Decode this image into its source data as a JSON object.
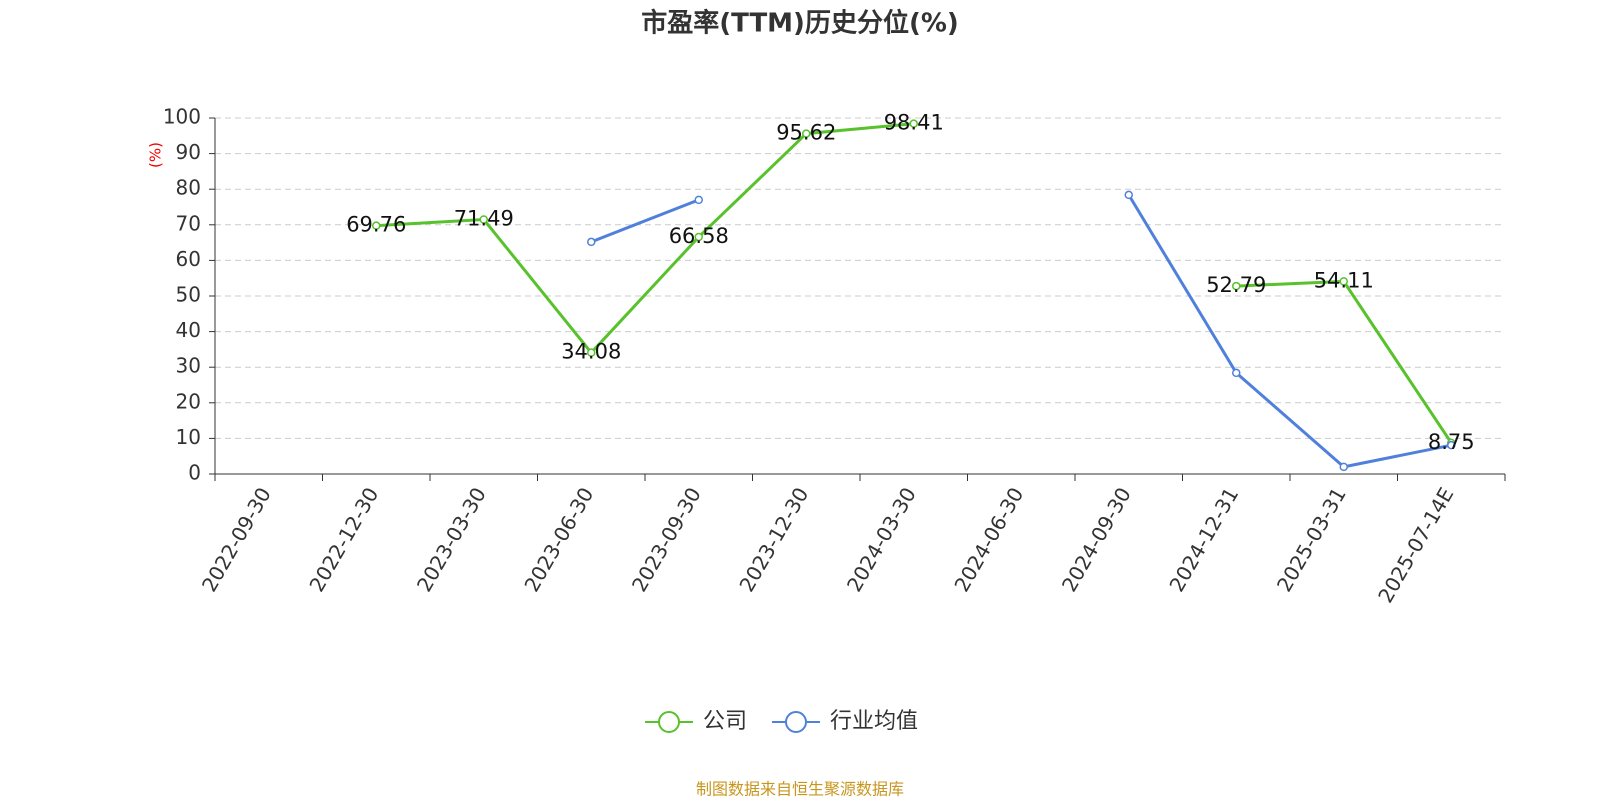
{
  "chart_data": {
    "type": "line",
    "title": "市盈率(TTM)历史分位(%)",
    "y_label": "(%)",
    "source": "制图数据来自恒生聚源数据库",
    "categories": [
      "2022-09-30",
      "2022-12-30",
      "2023-03-30",
      "2023-06-30",
      "2023-09-30",
      "2023-12-30",
      "2024-03-30",
      "2024-06-30",
      "2024-09-30",
      "2024-12-31",
      "2025-03-31",
      "2025-07-14E"
    ],
    "series": [
      {
        "name": "公司",
        "color": "#58c22c",
        "values": [
          null,
          69.76,
          71.49,
          34.08,
          66.58,
          95.62,
          98.41,
          null,
          null,
          52.79,
          54.11,
          8.75
        ],
        "data_labels": true
      },
      {
        "name": "行业均值",
        "color": "#4f80dc",
        "values": [
          null,
          null,
          null,
          65.2,
          77.0,
          null,
          null,
          null,
          78.4,
          28.4,
          2.0,
          8.1
        ],
        "data_labels": false
      }
    ],
    "ylim": [
      0,
      100
    ],
    "yticks": [
      0,
      10,
      20,
      30,
      40,
      50,
      60,
      70,
      80,
      90,
      100
    ],
    "grid": true
  }
}
